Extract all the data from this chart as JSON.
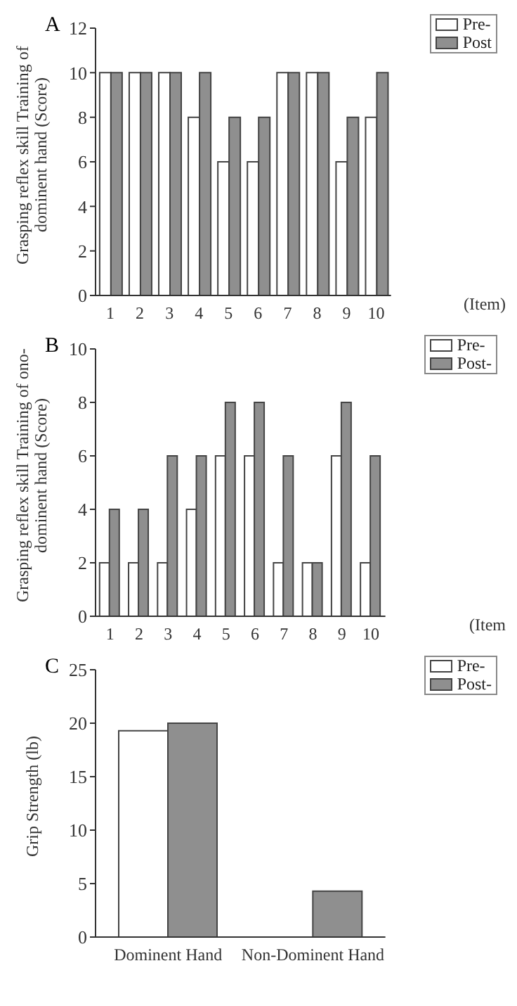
{
  "chart_data": [
    {
      "type": "bar",
      "title": "A",
      "ylabel": "Grasping reflex skill Training of dominent hand (Score)",
      "xlabel": "(Item)",
      "categories": [
        "1",
        "2",
        "3",
        "4",
        "5",
        "6",
        "7",
        "8",
        "9",
        "10"
      ],
      "series": [
        {
          "name": "Pre-",
          "color": "#ffffff",
          "values": [
            10,
            10,
            10,
            8,
            6,
            6,
            10,
            10,
            6,
            8
          ]
        },
        {
          "name": "Post",
          "color": "#8f8f8f",
          "values": [
            10,
            10,
            10,
            10,
            8,
            8,
            10,
            10,
            8,
            10
          ]
        }
      ],
      "ylim": [
        0,
        12
      ],
      "yticks": [
        0,
        2,
        4,
        6,
        8,
        10,
        12
      ],
      "grid": false,
      "legend": "top right"
    },
    {
      "type": "bar",
      "title": "B",
      "ylabel": "Grasping reflex skill Training of ono-dominent hand (Score)",
      "xlabel": "(Item",
      "categories": [
        "1",
        "2",
        "3",
        "4",
        "5",
        "6",
        "7",
        "8",
        "9",
        "10"
      ],
      "series": [
        {
          "name": "Pre-",
          "color": "#ffffff",
          "values": [
            2,
            2,
            2,
            4,
            6,
            6,
            2,
            2,
            6,
            2
          ]
        },
        {
          "name": "Post-",
          "color": "#8f8f8f",
          "values": [
            4,
            4,
            6,
            6,
            8,
            8,
            6,
            2,
            8,
            6
          ]
        }
      ],
      "ylim": [
        0,
        10
      ],
      "yticks": [
        0,
        2,
        4,
        6,
        8,
        10
      ],
      "grid": false,
      "legend": "top right"
    },
    {
      "type": "bar",
      "title": "C",
      "ylabel": "Grip Strength (lb)",
      "categories": [
        "Dominent Hand",
        "Non-Dominent Hand"
      ],
      "series": [
        {
          "name": "Pre-",
          "color": "#ffffff",
          "values": [
            19.3,
            0
          ]
        },
        {
          "name": "Post-",
          "color": "#8f8f8f",
          "values": [
            20,
            4.3
          ]
        }
      ],
      "ylim": [
        0,
        25
      ],
      "yticks": [
        0,
        5,
        10,
        15,
        20,
        25
      ],
      "grid": false,
      "legend": "top right"
    }
  ]
}
